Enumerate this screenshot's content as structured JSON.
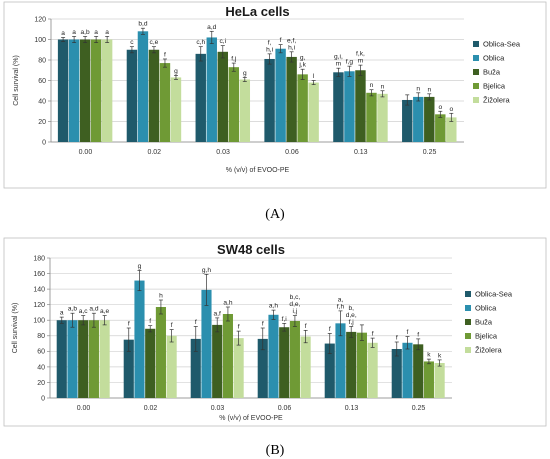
{
  "series_colors": [
    "#1f5a6b",
    "#2b8fae",
    "#3e5f21",
    "#6f9a35",
    "#c3dd9c"
  ],
  "chart_data": [
    {
      "type": "bar",
      "panel_label": "(A)",
      "title": "HeLa cells",
      "ylabel": "Cell survival (%)",
      "xlabel": "% (v/v) of  EVOO-PE",
      "ylim": [
        0,
        120
      ],
      "yticks": [
        "0",
        "20",
        "40",
        "60",
        "80",
        "100",
        "120"
      ],
      "categories": [
        "0.00",
        "0.02",
        "0.03",
        "0.06",
        "0.13",
        "0.25"
      ],
      "series": [
        {
          "name": "Oblica-Sea",
          "values": [
            100,
            90,
            86,
            81,
            68,
            41
          ],
          "errors": [
            2,
            3,
            7,
            5,
            4,
            5
          ],
          "labels": [
            "a",
            "c",
            "c,h",
            "f,\nh,i",
            "g,i,\nm",
            ""
          ]
        },
        {
          "name": "Oblica",
          "values": [
            100,
            108,
            102,
            91,
            69,
            44
          ],
          "errors": [
            3,
            3,
            6,
            4,
            5,
            4
          ],
          "labels": [
            "a",
            "b,d",
            "a,d",
            "f",
            "f,g",
            "n"
          ]
        },
        {
          "name": "Buža",
          "values": [
            100,
            90,
            88,
            83,
            70,
            44
          ],
          "errors": [
            3,
            3,
            6,
            5,
            5,
            3
          ],
          "labels": [
            "a,b",
            "c,e",
            "c,i",
            "e,f,\nh,i",
            "f,k,\nm",
            "n"
          ]
        },
        {
          "name": "Bjelica",
          "values": [
            100,
            77,
            73,
            66,
            48,
            27
          ],
          "errors": [
            3,
            4,
            4,
            5,
            3,
            3
          ],
          "labels": [
            "a",
            "f",
            "f,j",
            "g,\nj,k",
            "n",
            "o"
          ]
        },
        {
          "name": "Žižolera",
          "values": [
            100,
            63,
            61,
            58,
            47,
            24
          ],
          "errors": [
            3,
            2,
            2,
            2,
            3,
            4
          ],
          "labels": [
            "a",
            "g",
            "g",
            "l",
            "n",
            "o"
          ]
        }
      ]
    },
    {
      "type": "bar",
      "panel_label": "(B)",
      "title": "SW48 cells",
      "ylabel": "Cell survival (%)",
      "xlabel": "% (v/v) of  EVOO-PE",
      "ylim": [
        0,
        180
      ],
      "yticks": [
        "0",
        "20",
        "40",
        "60",
        "80",
        "100",
        "120",
        "140",
        "160",
        "180"
      ],
      "categories": [
        "0.00",
        "0.02",
        "0.03",
        "0.06",
        "0.13",
        "0.25"
      ],
      "series": [
        {
          "name": "Oblica-Sea",
          "values": [
            100,
            75,
            76,
            76,
            70,
            63
          ],
          "errors": [
            4,
            15,
            16,
            14,
            13,
            9
          ],
          "labels": [
            "a",
            "f",
            "f",
            "f",
            "f",
            "f"
          ]
        },
        {
          "name": "Oblica",
          "values": [
            100,
            151,
            139,
            107,
            96,
            71
          ],
          "errors": [
            9,
            13,
            20,
            6,
            16,
            8
          ],
          "labels": [
            "a,b",
            "g",
            "g,h",
            "a,h",
            "a,\nf,h",
            "f"
          ]
        },
        {
          "name": "Buža",
          "values": [
            100,
            89,
            94,
            91,
            85,
            69
          ],
          "errors": [
            6,
            4,
            9,
            5,
            7,
            7
          ],
          "labels": [
            "a,c",
            "f",
            "a,f",
            "f,i",
            "b,\nd,e,\nf,j",
            "f"
          ]
        },
        {
          "name": "Bjelica",
          "values": [
            100,
            117,
            108,
            99,
            84,
            47
          ],
          "errors": [
            9,
            9,
            9,
            7,
            10,
            3
          ],
          "labels": [
            "a,d",
            "h",
            "a,h",
            "b,c,\nd,e,\ni,j",
            "",
            "k"
          ]
        },
        {
          "name": "Žižolera",
          "values": [
            100,
            80,
            77,
            79,
            71,
            45
          ],
          "errors": [
            6,
            8,
            9,
            8,
            6,
            4
          ],
          "labels": [
            "a,e",
            "f",
            "f",
            "f",
            "f",
            "k"
          ]
        }
      ]
    }
  ]
}
